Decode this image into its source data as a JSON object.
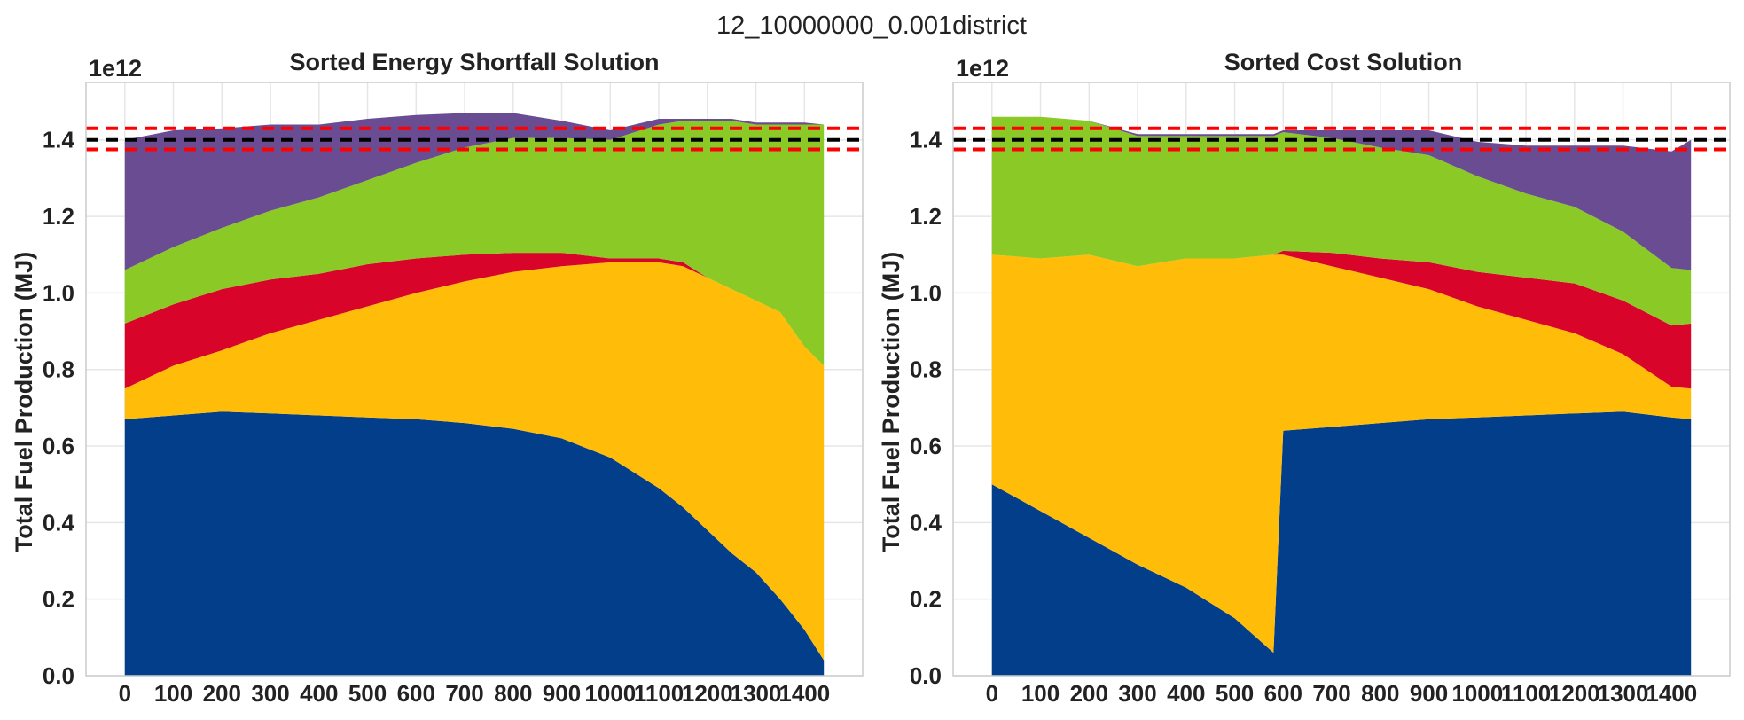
{
  "figure": {
    "suptitle": "12_10000000_0.001district"
  },
  "colors": {
    "fuels": [
      "#023e8a",
      "#ffbd0a",
      "#d90429",
      "#8ac926",
      "#6a4c93"
    ],
    "target_line": "#000000",
    "tolerance_line": "#ff0000",
    "grid": "#e6e6e6"
  },
  "chart_data": [
    {
      "type": "area",
      "title": "Sorted Energy Shortfall Solution",
      "ylabel": "Total Fuel Production (MJ)",
      "y_offset_label": "1e12",
      "xlim": [
        -80,
        1520
      ],
      "ylim": [
        0,
        1.55
      ],
      "x_ticks": [
        0,
        100,
        200,
        300,
        400,
        500,
        600,
        700,
        800,
        900,
        1000,
        1100,
        1200,
        1300,
        1400
      ],
      "y_ticks": [
        "0.0",
        "0.2",
        "0.4",
        "0.6",
        "0.8",
        "1.0",
        "1.2",
        "1.4"
      ],
      "grid": true,
      "reference_lines": {
        "target": 1.4,
        "upper": 1.43,
        "lower": 1.375
      },
      "x": [
        0,
        100,
        200,
        300,
        400,
        500,
        600,
        700,
        800,
        900,
        1000,
        1100,
        1150,
        1200,
        1250,
        1300,
        1350,
        1400,
        1440
      ],
      "series": [
        {
          "values": [
            0.67,
            0.68,
            0.69,
            0.685,
            0.68,
            0.675,
            0.67,
            0.66,
            0.645,
            0.62,
            0.57,
            0.49,
            0.44,
            0.38,
            0.32,
            0.27,
            0.2,
            0.12,
            0.04
          ]
        },
        {
          "values": [
            0.08,
            0.13,
            0.16,
            0.21,
            0.25,
            0.29,
            0.33,
            0.37,
            0.41,
            0.45,
            0.51,
            0.59,
            0.63,
            0.66,
            0.69,
            0.71,
            0.75,
            0.74,
            0.77
          ]
        },
        {
          "values": [
            0.17,
            0.16,
            0.16,
            0.14,
            0.12,
            0.11,
            0.09,
            0.07,
            0.05,
            0.035,
            0.01,
            0.01,
            0.01,
            0.0,
            0.0,
            0.0,
            0.0,
            0.0,
            0.0
          ]
        },
        {
          "values": [
            0.14,
            0.15,
            0.16,
            0.18,
            0.2,
            0.22,
            0.25,
            0.28,
            0.3,
            0.3,
            0.31,
            0.35,
            0.37,
            0.41,
            0.44,
            0.46,
            0.49,
            0.58,
            0.63
          ]
        },
        {
          "values": [
            0.34,
            0.305,
            0.26,
            0.225,
            0.19,
            0.16,
            0.125,
            0.09,
            0.065,
            0.045,
            0.025,
            0.015,
            0.005,
            0.005,
            0.005,
            0.005,
            0.005,
            0.005,
            0.0
          ]
        }
      ]
    },
    {
      "type": "area",
      "title": "Sorted Cost Solution",
      "ylabel": "Total Fuel Production (MJ)",
      "y_offset_label": "1e12",
      "xlim": [
        -80,
        1520
      ],
      "ylim": [
        0,
        1.55
      ],
      "x_ticks": [
        0,
        100,
        200,
        300,
        400,
        500,
        600,
        700,
        800,
        900,
        1000,
        1100,
        1200,
        1300,
        1400
      ],
      "y_ticks": [
        "0.0",
        "0.2",
        "0.4",
        "0.6",
        "0.8",
        "1.0",
        "1.2",
        "1.4"
      ],
      "grid": true,
      "reference_lines": {
        "target": 1.4,
        "upper": 1.43,
        "lower": 1.375
      },
      "x": [
        0,
        100,
        200,
        300,
        400,
        500,
        580,
        600,
        700,
        800,
        900,
        1000,
        1100,
        1200,
        1300,
        1400,
        1440
      ],
      "series": [
        {
          "values": [
            0.5,
            0.43,
            0.36,
            0.29,
            0.23,
            0.15,
            0.06,
            0.64,
            0.65,
            0.66,
            0.67,
            0.675,
            0.68,
            0.685,
            0.69,
            0.675,
            0.67
          ]
        },
        {
          "values": [
            0.6,
            0.66,
            0.74,
            0.78,
            0.86,
            0.94,
            1.04,
            0.46,
            0.42,
            0.38,
            0.34,
            0.29,
            0.25,
            0.21,
            0.15,
            0.08,
            0.08
          ]
        },
        {
          "values": [
            0.0,
            0.0,
            0.0,
            0.0,
            0.0,
            0.0,
            0.0,
            0.01,
            0.035,
            0.05,
            0.07,
            0.09,
            0.11,
            0.13,
            0.14,
            0.16,
            0.17
          ]
        },
        {
          "values": [
            0.36,
            0.37,
            0.35,
            0.34,
            0.32,
            0.32,
            0.31,
            0.31,
            0.3,
            0.29,
            0.28,
            0.25,
            0.22,
            0.2,
            0.18,
            0.15,
            0.14
          ]
        },
        {
          "values": [
            0.0,
            0.0,
            0.0,
            0.005,
            0.005,
            0.005,
            0.005,
            0.005,
            0.02,
            0.045,
            0.065,
            0.09,
            0.125,
            0.16,
            0.225,
            0.305,
            0.34
          ]
        }
      ]
    }
  ]
}
